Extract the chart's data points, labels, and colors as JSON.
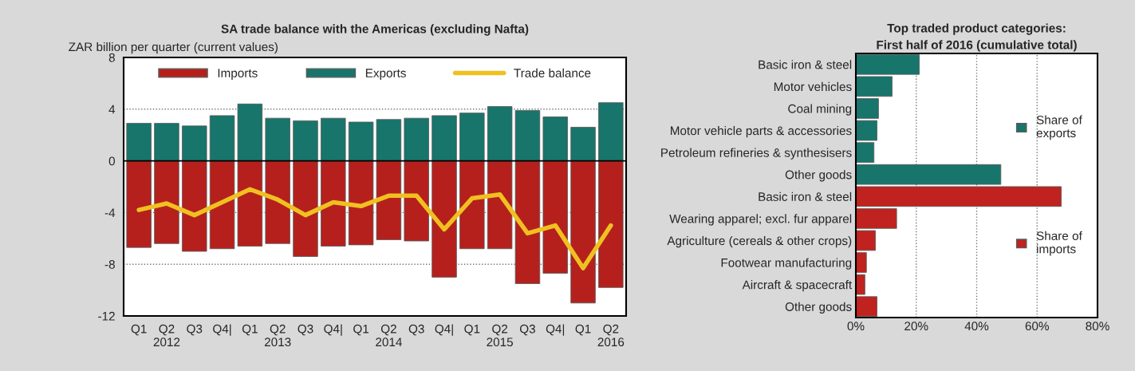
{
  "chart_data": [
    {
      "type": "bar",
      "title": "SA trade balance with the Americas (excluding Nafta)",
      "ylabel": "ZAR billion per quarter (current values)",
      "stacked": true,
      "categories": [
        "Q1",
        "Q2\n2012",
        "Q3",
        "Q4|",
        "Q1",
        "Q2\n2013",
        "Q3",
        "Q4|",
        "Q1",
        "Q2\n2014",
        "Q3",
        "Q4|",
        "Q1",
        "Q2\n2015",
        "Q3",
        "Q4|",
        "Q1",
        "Q2\n2016"
      ],
      "series": [
        {
          "name": "Imports",
          "color": "#b5201d",
          "values": [
            -6.7,
            -6.4,
            -7.0,
            -6.8,
            -6.6,
            -6.4,
            -7.4,
            -6.6,
            -6.5,
            -6.1,
            -6.2,
            -9.0,
            -6.8,
            -6.8,
            -9.5,
            -8.7,
            -11.0,
            -9.8
          ]
        },
        {
          "name": "Exports",
          "color": "#17756b",
          "values": [
            2.9,
            2.9,
            2.7,
            3.5,
            4.4,
            3.3,
            3.1,
            3.3,
            3.0,
            3.2,
            3.3,
            3.5,
            3.7,
            4.2,
            3.9,
            3.4,
            2.6,
            4.5
          ]
        },
        {
          "name": "Trade balance",
          "type": "line",
          "color": "#f0c020",
          "values": [
            -3.8,
            -3.3,
            -4.2,
            -3.2,
            -2.2,
            -3.0,
            -4.2,
            -3.2,
            -3.5,
            -2.7,
            -2.7,
            -5.3,
            -2.9,
            -2.6,
            -5.6,
            -5.0,
            -8.3,
            -5.0
          ]
        }
      ],
      "ylim": [
        -12,
        8
      ],
      "yticks": [
        -12,
        -8,
        -4,
        0,
        4,
        8
      ],
      "grid": "y",
      "legend": "top"
    },
    {
      "type": "bar",
      "orientation": "horizontal",
      "title": "Top traded product categories:\nFirst half of 2016 (cumulative total)",
      "categories": [
        "Basic iron & steel",
        "Motor vehicles",
        "Coal mining",
        "Motor vehicle parts & accessories",
        "Petroleum refineries & synthesisers",
        "Other goods",
        "Basic iron & steel",
        "Wearing apparel; excl. fur apparel",
        "Agriculture (cereals & other crops)",
        "Footwear manufacturing",
        "Aircraft & spacecraft",
        "Other goods"
      ],
      "series": [
        {
          "name": "Share of exports",
          "color": "#17756b",
          "values": [
            21,
            12,
            7.5,
            7,
            6,
            48,
            null,
            null,
            null,
            null,
            null,
            null
          ]
        },
        {
          "name": "Share of imports",
          "color": "#c0221f",
          "values": [
            null,
            null,
            null,
            null,
            null,
            null,
            68,
            13.5,
            6.5,
            3.5,
            3,
            7
          ]
        }
      ],
      "xlim": [
        0,
        80
      ],
      "xticks": [
        {
          "value": 0,
          "label": "0%"
        },
        {
          "value": 20,
          "label": "20%"
        },
        {
          "value": 40,
          "label": "40%"
        },
        {
          "value": 60,
          "label": "60%"
        },
        {
          "value": 80,
          "label": "80%"
        }
      ],
      "grid": "x",
      "legend": "right"
    }
  ]
}
